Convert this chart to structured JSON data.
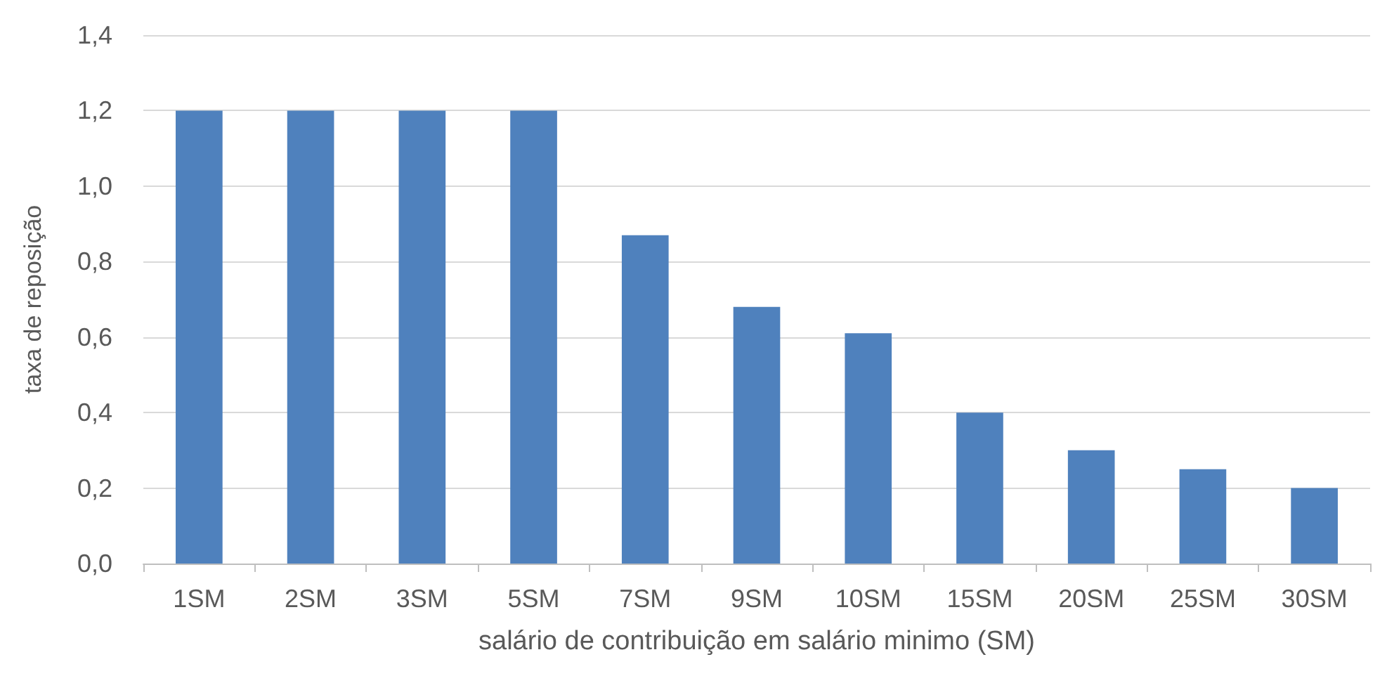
{
  "chart_data": {
    "type": "bar",
    "xlabel": "salário de contribuição em salário minimo (SM)",
    "ylabel": "taxa de reposição",
    "categories": [
      "1SM",
      "2SM",
      "3SM",
      "5SM",
      "7SM",
      "9SM",
      "10SM",
      "15SM",
      "20SM",
      "25SM",
      "30SM"
    ],
    "values": [
      1.2,
      1.2,
      1.2,
      1.2,
      0.87,
      0.68,
      0.61,
      0.4,
      0.3,
      0.25,
      0.2
    ],
    "color": "#4f81bd",
    "ylim": [
      0,
      1.4
    ],
    "yticks": [
      {
        "value": 0,
        "label": "0,0"
      },
      {
        "value": 0.2,
        "label": "0,2"
      },
      {
        "value": 0.4,
        "label": "0,4"
      },
      {
        "value": 0.6,
        "label": "0,6"
      },
      {
        "value": 0.8,
        "label": "0,8"
      },
      {
        "value": 1,
        "label": "1,0"
      },
      {
        "value": 1.2,
        "label": "1,2"
      },
      {
        "value": 1.4,
        "label": "1,4"
      }
    ],
    "grid": "y"
  }
}
